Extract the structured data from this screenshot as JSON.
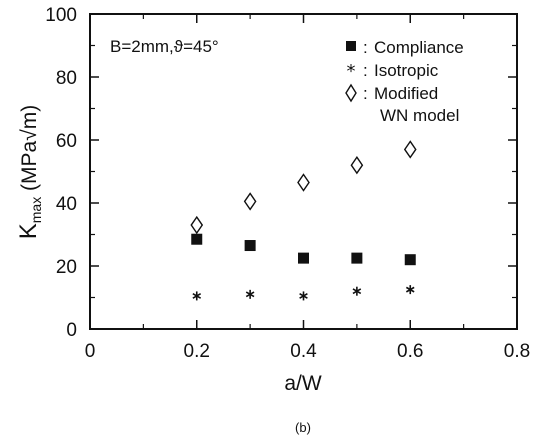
{
  "chart_data": {
    "type": "scatter",
    "xlabel": "a/W",
    "ylabel_main": "K",
    "ylabel_sub": "max",
    "ylabel_unit": "(MPa√m)",
    "xlim": [
      0,
      0.8
    ],
    "ylim": [
      0,
      100
    ],
    "xticks": [
      "0",
      "0.2",
      "0.4",
      "0.6",
      "0.8"
    ],
    "yticks": [
      "0",
      "20",
      "40",
      "60",
      "80",
      "100"
    ],
    "annotation": "B=2mm,ϑ=45°",
    "legend_position": "top-right",
    "caption": "(b)",
    "series": [
      {
        "name": "Compliance",
        "marker": "square",
        "x": [
          0.2,
          0.3,
          0.4,
          0.5,
          0.6
        ],
        "y": [
          28.5,
          26.5,
          22.5,
          22.5,
          22
        ]
      },
      {
        "name": "Isotropic",
        "marker": "star",
        "x": [
          0.2,
          0.3,
          0.4,
          0.5,
          0.6
        ],
        "y": [
          10.5,
          11,
          10.5,
          12,
          12.5
        ]
      },
      {
        "name": "Modified",
        "name_line2": "WN model",
        "marker": "diamond",
        "x": [
          0.2,
          0.3,
          0.4,
          0.5,
          0.6
        ],
        "y": [
          33,
          40.5,
          46.5,
          52,
          57
        ]
      }
    ],
    "legend_separator": ":"
  }
}
